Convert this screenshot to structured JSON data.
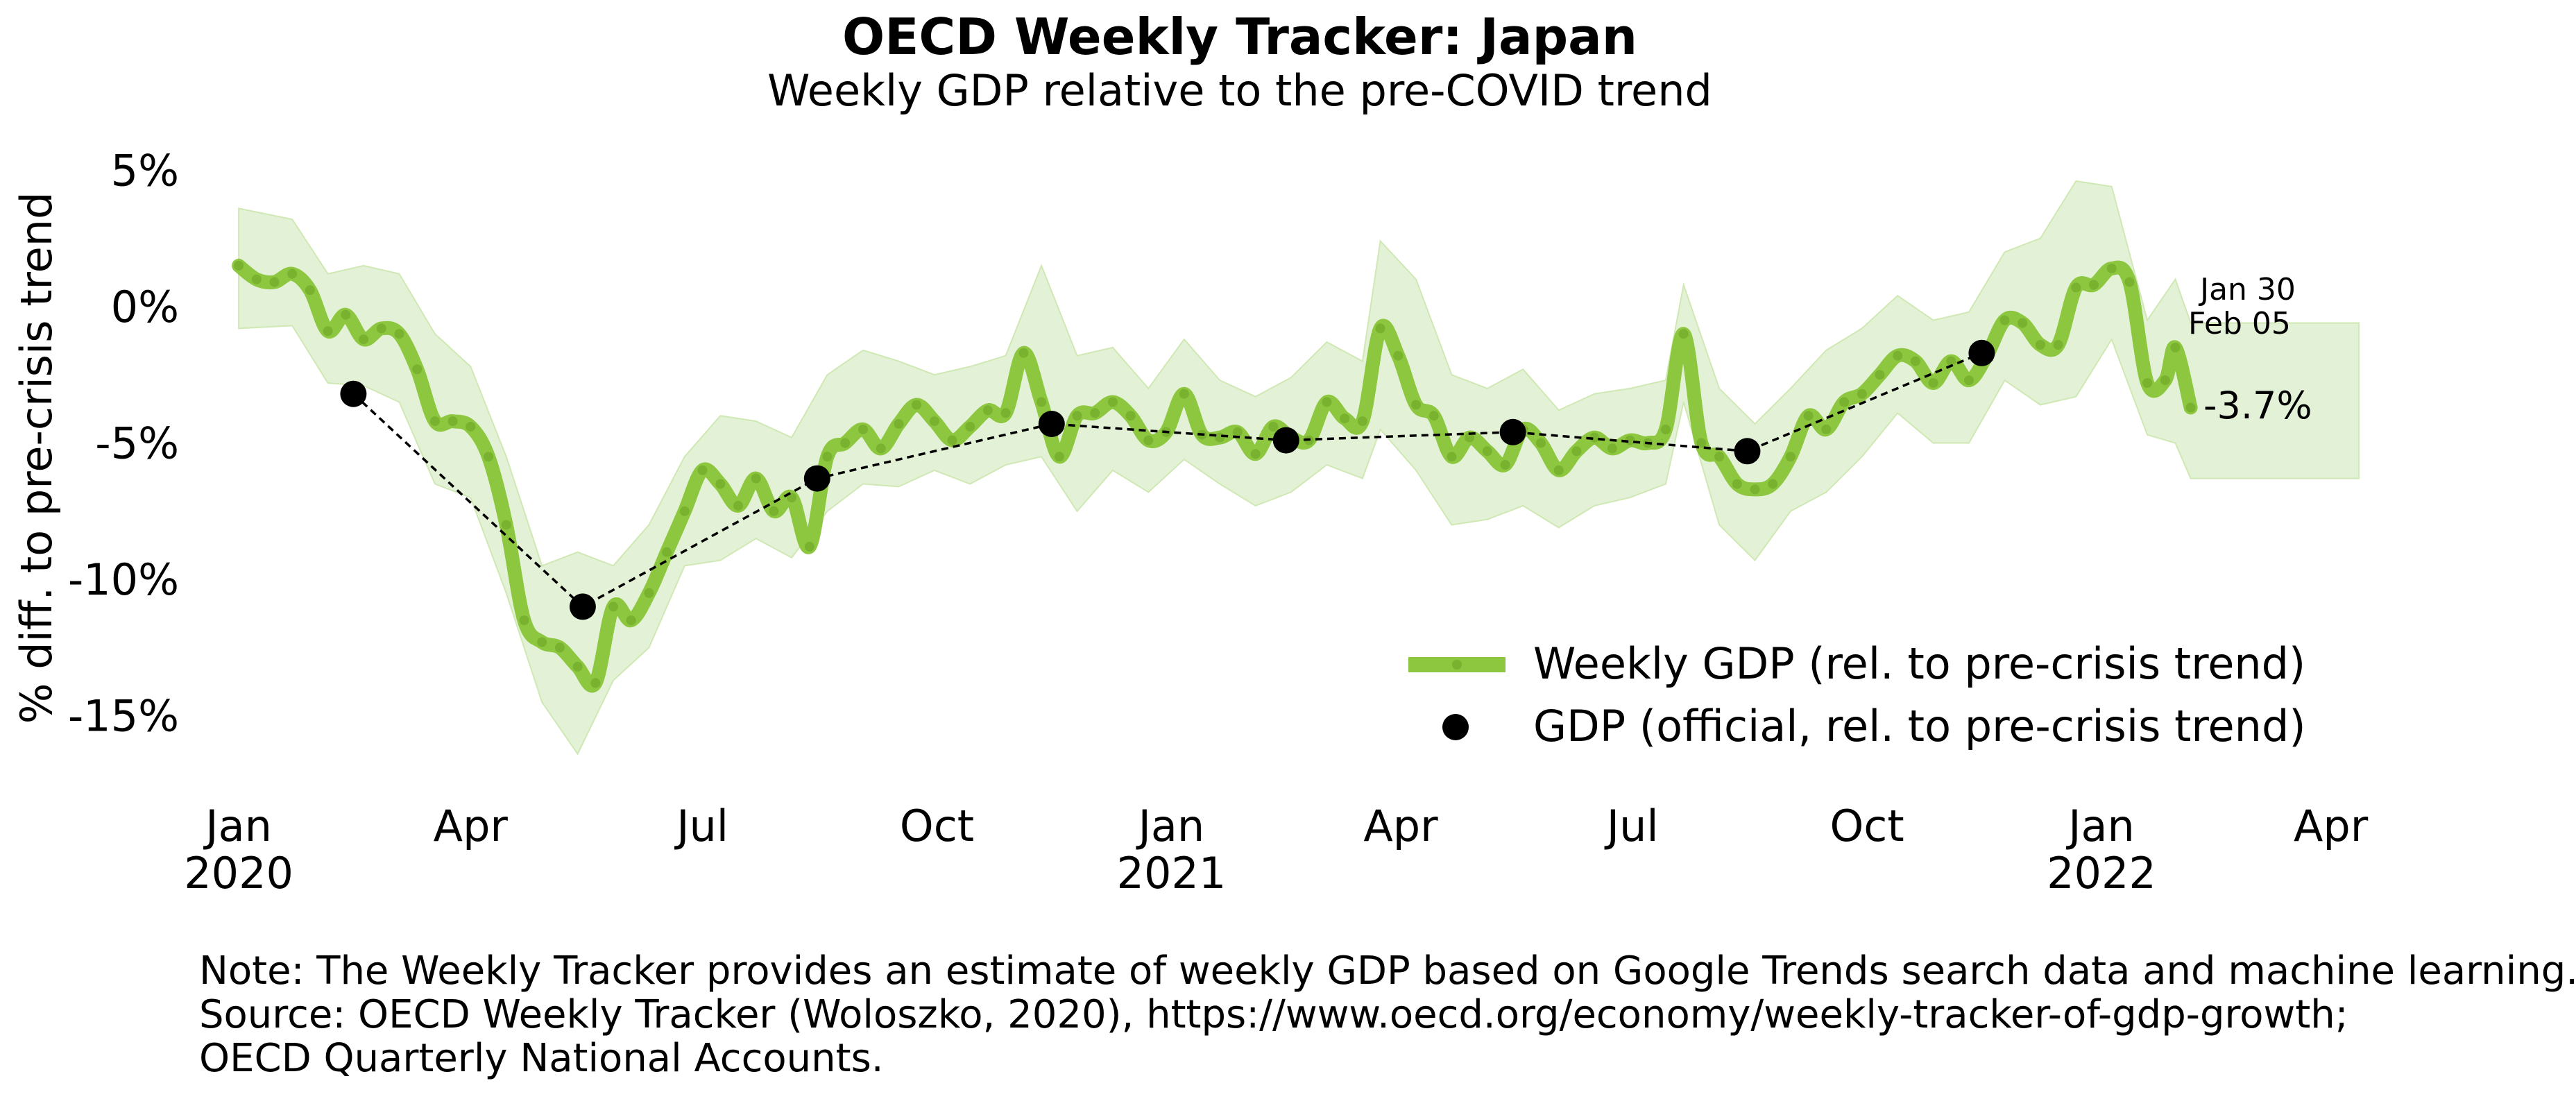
{
  "colors": {
    "weekly_line": "#8dc63f",
    "band_fill": "#e3f2d6",
    "official_dot": "#000000"
  },
  "chart_data": {
    "type": "line",
    "title": "OECD Weekly Tracker: Japan",
    "subtitle": "Weekly GDP relative to the pre-COVID trend",
    "ylabel": "% diff. to pre-crisis trend",
    "xlabel": "",
    "ylim": [
      -17.5,
      6
    ],
    "xlim": [
      "2019-12-20",
      "2022-04-12"
    ],
    "y_ticks": [
      5,
      0,
      -5,
      -10,
      -15
    ],
    "y_tick_labels": [
      "5%",
      "0%",
      "-5%",
      "-10%",
      "-15%"
    ],
    "x_ticks": [
      {
        "date": "2020-01-01",
        "label": "Jan",
        "year": "2020"
      },
      {
        "date": "2020-04-01",
        "label": "Apr",
        "year": ""
      },
      {
        "date": "2020-07-01",
        "label": "Jul",
        "year": ""
      },
      {
        "date": "2020-10-01",
        "label": "Oct",
        "year": ""
      },
      {
        "date": "2021-01-01",
        "label": "Jan",
        "year": "2021"
      },
      {
        "date": "2021-04-01",
        "label": "Apr",
        "year": ""
      },
      {
        "date": "2021-07-01",
        "label": "Jul",
        "year": ""
      },
      {
        "date": "2021-10-01",
        "label": "Oct",
        "year": ""
      },
      {
        "date": "2022-01-01",
        "label": "Jan",
        "year": "2022"
      },
      {
        "date": "2022-04-01",
        "label": "Apr",
        "year": ""
      }
    ],
    "grid": false,
    "legend_position": "bottom-right",
    "series": [
      {
        "name": "Weekly GDP (rel. to pre-crisis trend)",
        "kind": "line",
        "points": [
          [
            "2020-01-01",
            1.5
          ],
          [
            "2020-01-08",
            1.0
          ],
          [
            "2020-01-15",
            0.9
          ],
          [
            "2020-01-22",
            1.2
          ],
          [
            "2020-01-29",
            0.6
          ],
          [
            "2020-02-05",
            -0.9
          ],
          [
            "2020-02-12",
            -0.3
          ],
          [
            "2020-02-19",
            -1.2
          ],
          [
            "2020-02-26",
            -0.8
          ],
          [
            "2020-03-04",
            -1.0
          ],
          [
            "2020-03-11",
            -2.3
          ],
          [
            "2020-03-18",
            -4.2
          ],
          [
            "2020-03-25",
            -4.2
          ],
          [
            "2020-04-01",
            -4.4
          ],
          [
            "2020-04-08",
            -5.5
          ],
          [
            "2020-04-15",
            -8.0
          ],
          [
            "2020-04-22",
            -11.5
          ],
          [
            "2020-04-29",
            -12.3
          ],
          [
            "2020-05-06",
            -12.5
          ],
          [
            "2020-05-13",
            -13.2
          ],
          [
            "2020-05-20",
            -13.8
          ],
          [
            "2020-05-27",
            -11.0
          ],
          [
            "2020-06-03",
            -11.5
          ],
          [
            "2020-06-10",
            -10.5
          ],
          [
            "2020-06-17",
            -9.0
          ],
          [
            "2020-06-24",
            -7.5
          ],
          [
            "2020-07-01",
            -6.0
          ],
          [
            "2020-07-08",
            -6.5
          ],
          [
            "2020-07-15",
            -7.3
          ],
          [
            "2020-07-22",
            -6.3
          ],
          [
            "2020-07-29",
            -7.5
          ],
          [
            "2020-08-05",
            -7.0
          ],
          [
            "2020-08-12",
            -8.8
          ],
          [
            "2020-08-19",
            -5.5
          ],
          [
            "2020-08-26",
            -5.0
          ],
          [
            "2020-09-02",
            -4.5
          ],
          [
            "2020-09-09",
            -5.2
          ],
          [
            "2020-09-16",
            -4.3
          ],
          [
            "2020-09-23",
            -3.6
          ],
          [
            "2020-09-30",
            -4.2
          ],
          [
            "2020-10-07",
            -4.9
          ],
          [
            "2020-10-14",
            -4.4
          ],
          [
            "2020-10-21",
            -3.8
          ],
          [
            "2020-10-28",
            -3.9
          ],
          [
            "2020-11-04",
            -1.7
          ],
          [
            "2020-11-11",
            -3.5
          ],
          [
            "2020-11-18",
            -5.5
          ],
          [
            "2020-11-25",
            -4.0
          ],
          [
            "2020-12-02",
            -3.9
          ],
          [
            "2020-12-09",
            -3.5
          ],
          [
            "2020-12-16",
            -4.0
          ],
          [
            "2020-12-23",
            -4.9
          ],
          [
            "2020-12-30",
            -4.6
          ],
          [
            "2021-01-06",
            -3.2
          ],
          [
            "2021-01-13",
            -4.7
          ],
          [
            "2021-01-20",
            -4.8
          ],
          [
            "2021-01-27",
            -4.6
          ],
          [
            "2021-02-03",
            -5.4
          ],
          [
            "2021-02-10",
            -4.4
          ],
          [
            "2021-02-17",
            -4.8
          ],
          [
            "2021-02-24",
            -4.9
          ],
          [
            "2021-03-03",
            -3.5
          ],
          [
            "2021-03-10",
            -4.1
          ],
          [
            "2021-03-17",
            -4.2
          ],
          [
            "2021-03-24",
            -0.8
          ],
          [
            "2021-03-31",
            -1.8
          ],
          [
            "2021-04-07",
            -3.6
          ],
          [
            "2021-04-14",
            -4.0
          ],
          [
            "2021-04-21",
            -5.5
          ],
          [
            "2021-04-28",
            -4.8
          ],
          [
            "2021-05-05",
            -5.3
          ],
          [
            "2021-05-12",
            -5.8
          ],
          [
            "2021-05-19",
            -4.5
          ],
          [
            "2021-05-26",
            -5.0
          ],
          [
            "2021-06-02",
            -6.0
          ],
          [
            "2021-06-09",
            -5.3
          ],
          [
            "2021-06-16",
            -4.8
          ],
          [
            "2021-06-23",
            -5.2
          ],
          [
            "2021-06-30",
            -4.9
          ],
          [
            "2021-07-07",
            -5.0
          ],
          [
            "2021-07-14",
            -4.5
          ],
          [
            "2021-07-21",
            -1.0
          ],
          [
            "2021-07-28",
            -5.0
          ],
          [
            "2021-08-04",
            -5.5
          ],
          [
            "2021-08-11",
            -6.5
          ],
          [
            "2021-08-18",
            -6.7
          ],
          [
            "2021-08-25",
            -6.5
          ],
          [
            "2021-09-01",
            -5.5
          ],
          [
            "2021-09-08",
            -4.0
          ],
          [
            "2021-09-15",
            -4.5
          ],
          [
            "2021-09-22",
            -3.5
          ],
          [
            "2021-09-29",
            -3.2
          ],
          [
            "2021-10-06",
            -2.5
          ],
          [
            "2021-10-13",
            -1.8
          ],
          [
            "2021-10-20",
            -2.0
          ],
          [
            "2021-10-27",
            -2.8
          ],
          [
            "2021-11-03",
            -2.0
          ],
          [
            "2021-11-10",
            -2.7
          ],
          [
            "2021-11-17",
            -1.8
          ],
          [
            "2021-11-24",
            -0.5
          ],
          [
            "2021-12-01",
            -0.6
          ],
          [
            "2021-12-08",
            -1.4
          ],
          [
            "2021-12-15",
            -1.4
          ],
          [
            "2021-12-22",
            0.7
          ],
          [
            "2021-12-29",
            0.8
          ],
          [
            "2022-01-05",
            1.4
          ],
          [
            "2022-01-12",
            0.9
          ],
          [
            "2022-01-19",
            -2.8
          ],
          [
            "2022-01-26",
            -2.7
          ],
          [
            "2022-01-30",
            -1.5
          ],
          [
            "2022-02-05",
            -3.7
          ]
        ],
        "band": {
          "name": "",
          "upper": [
            [
              "2020-01-01",
              3.6
            ],
            [
              "2020-01-22",
              3.2
            ],
            [
              "2020-02-05",
              1.2
            ],
            [
              "2020-02-19",
              1.5
            ],
            [
              "2020-03-04",
              1.2
            ],
            [
              "2020-03-18",
              -1.0
            ],
            [
              "2020-04-01",
              -2.2
            ],
            [
              "2020-04-15",
              -5.5
            ],
            [
              "2020-04-29",
              -9.5
            ],
            [
              "2020-05-13",
              -9.0
            ],
            [
              "2020-05-27",
              -9.5
            ],
            [
              "2020-06-10",
              -8.0
            ],
            [
              "2020-06-24",
              -5.5
            ],
            [
              "2020-07-08",
              -4.0
            ],
            [
              "2020-07-22",
              -4.2
            ],
            [
              "2020-08-05",
              -4.8
            ],
            [
              "2020-08-19",
              -2.5
            ],
            [
              "2020-09-02",
              -1.6
            ],
            [
              "2020-09-16",
              -2.0
            ],
            [
              "2020-09-30",
              -2.5
            ],
            [
              "2020-10-14",
              -2.2
            ],
            [
              "2020-10-28",
              -1.8
            ],
            [
              "2020-11-11",
              1.5
            ],
            [
              "2020-11-25",
              -1.8
            ],
            [
              "2020-12-09",
              -1.5
            ],
            [
              "2020-12-23",
              -3.0
            ],
            [
              "2021-01-06",
              -1.2
            ],
            [
              "2021-01-20",
              -2.7
            ],
            [
              "2021-02-03",
              -3.3
            ],
            [
              "2021-02-17",
              -2.6
            ],
            [
              "2021-03-03",
              -1.3
            ],
            [
              "2021-03-17",
              -2.0
            ],
            [
              "2021-03-24",
              2.4
            ],
            [
              "2021-04-07",
              1.0
            ],
            [
              "2021-04-21",
              -2.5
            ],
            [
              "2021-05-05",
              -3.0
            ],
            [
              "2021-05-19",
              -2.3
            ],
            [
              "2021-06-02",
              -3.8
            ],
            [
              "2021-06-16",
              -3.2
            ],
            [
              "2021-06-30",
              -3.0
            ],
            [
              "2021-07-14",
              -2.7
            ],
            [
              "2021-07-21",
              0.8
            ],
            [
              "2021-08-04",
              -3.0
            ],
            [
              "2021-08-18",
              -4.3
            ],
            [
              "2021-09-01",
              -3.0
            ],
            [
              "2021-09-15",
              -1.6
            ],
            [
              "2021-09-29",
              -0.8
            ],
            [
              "2021-10-13",
              0.4
            ],
            [
              "2021-10-27",
              -0.5
            ],
            [
              "2021-11-10",
              -0.2
            ],
            [
              "2021-11-24",
              2.0
            ],
            [
              "2021-12-08",
              2.5
            ],
            [
              "2021-12-22",
              4.6
            ],
            [
              "2022-01-05",
              4.4
            ],
            [
              "2022-01-19",
              -0.5
            ],
            [
              "2022-01-30",
              1.0
            ],
            [
              "2022-02-05",
              -0.6
            ],
            [
              "2022-04-12",
              -0.6
            ]
          ],
          "lower": [
            [
              "2020-01-01",
              -0.8
            ],
            [
              "2020-01-22",
              -0.7
            ],
            [
              "2020-02-05",
              -2.8
            ],
            [
              "2020-02-19",
              -2.9
            ],
            [
              "2020-03-04",
              -3.5
            ],
            [
              "2020-03-18",
              -6.5
            ],
            [
              "2020-04-01",
              -7.0
            ],
            [
              "2020-04-15",
              -10.5
            ],
            [
              "2020-04-29",
              -14.5
            ],
            [
              "2020-05-13",
              -16.4
            ],
            [
              "2020-05-27",
              -13.7
            ],
            [
              "2020-06-10",
              -12.5
            ],
            [
              "2020-06-24",
              -9.5
            ],
            [
              "2020-07-08",
              -9.3
            ],
            [
              "2020-07-22",
              -8.5
            ],
            [
              "2020-08-05",
              -9.2
            ],
            [
              "2020-08-19",
              -7.5
            ],
            [
              "2020-09-02",
              -6.5
            ],
            [
              "2020-09-16",
              -6.6
            ],
            [
              "2020-09-30",
              -6.0
            ],
            [
              "2020-10-14",
              -6.5
            ],
            [
              "2020-10-28",
              -5.8
            ],
            [
              "2020-11-11",
              -5.5
            ],
            [
              "2020-11-25",
              -7.5
            ],
            [
              "2020-12-09",
              -6.0
            ],
            [
              "2020-12-23",
              -6.8
            ],
            [
              "2021-01-06",
              -5.6
            ],
            [
              "2021-01-20",
              -6.5
            ],
            [
              "2021-02-03",
              -7.3
            ],
            [
              "2021-02-17",
              -6.8
            ],
            [
              "2021-03-03",
              -5.8
            ],
            [
              "2021-03-17",
              -6.3
            ],
            [
              "2021-03-24",
              -4.5
            ],
            [
              "2021-04-07",
              -6.0
            ],
            [
              "2021-04-21",
              -8.0
            ],
            [
              "2021-05-05",
              -7.8
            ],
            [
              "2021-05-19",
              -7.3
            ],
            [
              "2021-06-02",
              -8.1
            ],
            [
              "2021-06-16",
              -7.3
            ],
            [
              "2021-06-30",
              -7.0
            ],
            [
              "2021-07-14",
              -6.5
            ],
            [
              "2021-07-21",
              -3.5
            ],
            [
              "2021-08-04",
              -8.0
            ],
            [
              "2021-08-18",
              -9.3
            ],
            [
              "2021-09-01",
              -7.5
            ],
            [
              "2021-09-15",
              -6.8
            ],
            [
              "2021-09-29",
              -5.5
            ],
            [
              "2021-10-13",
              -3.9
            ],
            [
              "2021-10-27",
              -5.0
            ],
            [
              "2021-11-10",
              -5.0
            ],
            [
              "2021-11-24",
              -2.7
            ],
            [
              "2021-12-08",
              -3.6
            ],
            [
              "2021-12-22",
              -3.3
            ],
            [
              "2022-01-05",
              -1.2
            ],
            [
              "2022-01-19",
              -4.7
            ],
            [
              "2022-01-30",
              -5.0
            ],
            [
              "2022-02-05",
              -6.3
            ],
            [
              "2022-04-12",
              -6.3
            ]
          ]
        }
      },
      {
        "name": "GDP (official, rel. to pre-crisis trend)",
        "kind": "points",
        "points": [
          [
            "2020-02-15",
            -3.2
          ],
          [
            "2020-05-15",
            -11.0
          ],
          [
            "2020-08-15",
            -6.3
          ],
          [
            "2020-11-15",
            -4.3
          ],
          [
            "2021-02-15",
            -4.9
          ],
          [
            "2021-05-15",
            -4.6
          ],
          [
            "2021-08-15",
            -5.3
          ],
          [
            "2021-11-15",
            -1.7
          ]
        ]
      }
    ],
    "annotations": {
      "date_labels": [
        "Jan 30",
        "Feb 05"
      ],
      "last_value": "-3.7%"
    }
  },
  "note": {
    "line1": "Note: The Weekly Tracker provides an estimate of weekly GDP based on Google Trends search data and machine learning.",
    "line2": "Source: OECD Weekly Tracker (Woloszko, 2020), https://www.oecd.org/economy/weekly-tracker-of-gdp-growth;",
    "line3": "OECD Quarterly National Accounts."
  }
}
